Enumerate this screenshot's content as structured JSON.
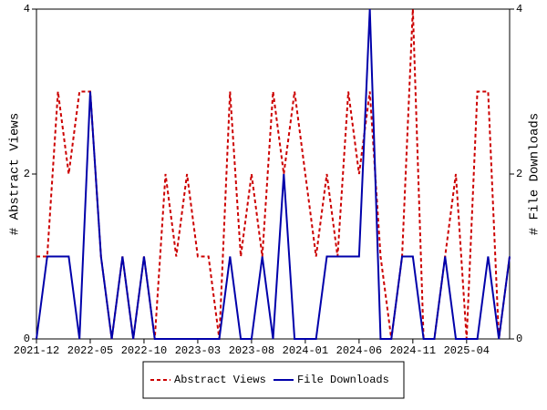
{
  "chart_data": {
    "type": "line",
    "categories": [
      "2021-12",
      null,
      null,
      null,
      null,
      "2022-05",
      null,
      null,
      null,
      null,
      "2022-10",
      null,
      null,
      null,
      null,
      "2023-03",
      null,
      null,
      null,
      null,
      "2023-08",
      null,
      null,
      null,
      null,
      "2024-01",
      null,
      null,
      null,
      null,
      "2024-06",
      null,
      null,
      null,
      null,
      "2024-11",
      null,
      null,
      null,
      null,
      "2025-04",
      null,
      null,
      null,
      null
    ],
    "series": [
      {
        "name": "Abstract Views",
        "color": "#cc0000",
        "dash": true,
        "values": [
          1,
          1,
          3,
          2,
          3,
          3,
          1,
          0,
          1,
          0,
          1,
          0,
          2,
          1,
          2,
          1,
          1,
          0,
          3,
          1,
          2,
          1,
          3,
          2,
          3,
          2,
          1,
          2,
          1,
          3,
          2,
          3,
          1,
          0,
          1,
          4,
          0,
          0,
          1,
          2,
          0,
          3,
          3,
          0,
          1
        ]
      },
      {
        "name": "File Downloads",
        "color": "#0000aa",
        "axis": "y2",
        "values": [
          0,
          1,
          1,
          1,
          0,
          3,
          1,
          0,
          1,
          0,
          1,
          0,
          0,
          0,
          0,
          0,
          0,
          0,
          1,
          0,
          0,
          1,
          0,
          2,
          0,
          0,
          0,
          1,
          1,
          1,
          1,
          4,
          0,
          0,
          1,
          1,
          0,
          0,
          1,
          0,
          0,
          0,
          1,
          0,
          1
        ]
      }
    ],
    "ylabel": "# Abstract Views",
    "y2label": "# File Downloads",
    "ylim": [
      0,
      4
    ],
    "yticks": [
      0,
      2,
      4
    ],
    "y2lim": [
      0,
      4
    ],
    "y2ticks": [
      0,
      2,
      4
    ],
    "legend": "bottom"
  }
}
